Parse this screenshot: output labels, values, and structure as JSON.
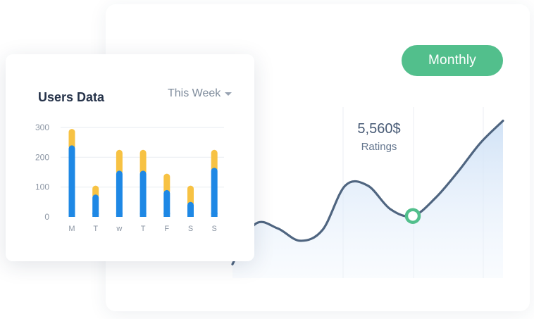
{
  "period_button": {
    "label": "Monthly"
  },
  "rating": {
    "value": "5,560$",
    "label": "Ratings"
  },
  "users_card": {
    "title": "Users Data",
    "range_label": "This Week"
  },
  "colors": {
    "accent_green": "#52bf8c",
    "bar_blue": "#1e88e5",
    "bar_yellow": "#f7c243",
    "line": "#4f6580",
    "area_fill": "#d6e6f8"
  },
  "chart_data": [
    {
      "type": "bar",
      "title": "Users Data",
      "categories": [
        "M",
        "T",
        "w",
        "T",
        "F",
        "S",
        "S"
      ],
      "series": [
        {
          "values": [
            240,
            75,
            155,
            155,
            90,
            50,
            165
          ]
        },
        {
          "values": [
            55,
            30,
            70,
            70,
            55,
            55,
            60
          ]
        }
      ],
      "stacked": true,
      "yticks": [
        0,
        100,
        200,
        300
      ],
      "ylim": [
        0,
        300
      ],
      "grid": true
    },
    {
      "type": "area",
      "x": [
        0,
        1,
        2,
        3,
        4,
        5,
        6,
        7,
        8,
        9,
        10,
        11,
        12
      ],
      "values": [
        5,
        34,
        31,
        22,
        30,
        62,
        62,
        45,
        40,
        53,
        72,
        93,
        109
      ],
      "ylim": [
        0,
        120
      ],
      "grid": false,
      "annotations": [
        {
          "text": "5,560$",
          "subtext": "Ratings",
          "point_index": 8
        }
      ]
    }
  ]
}
